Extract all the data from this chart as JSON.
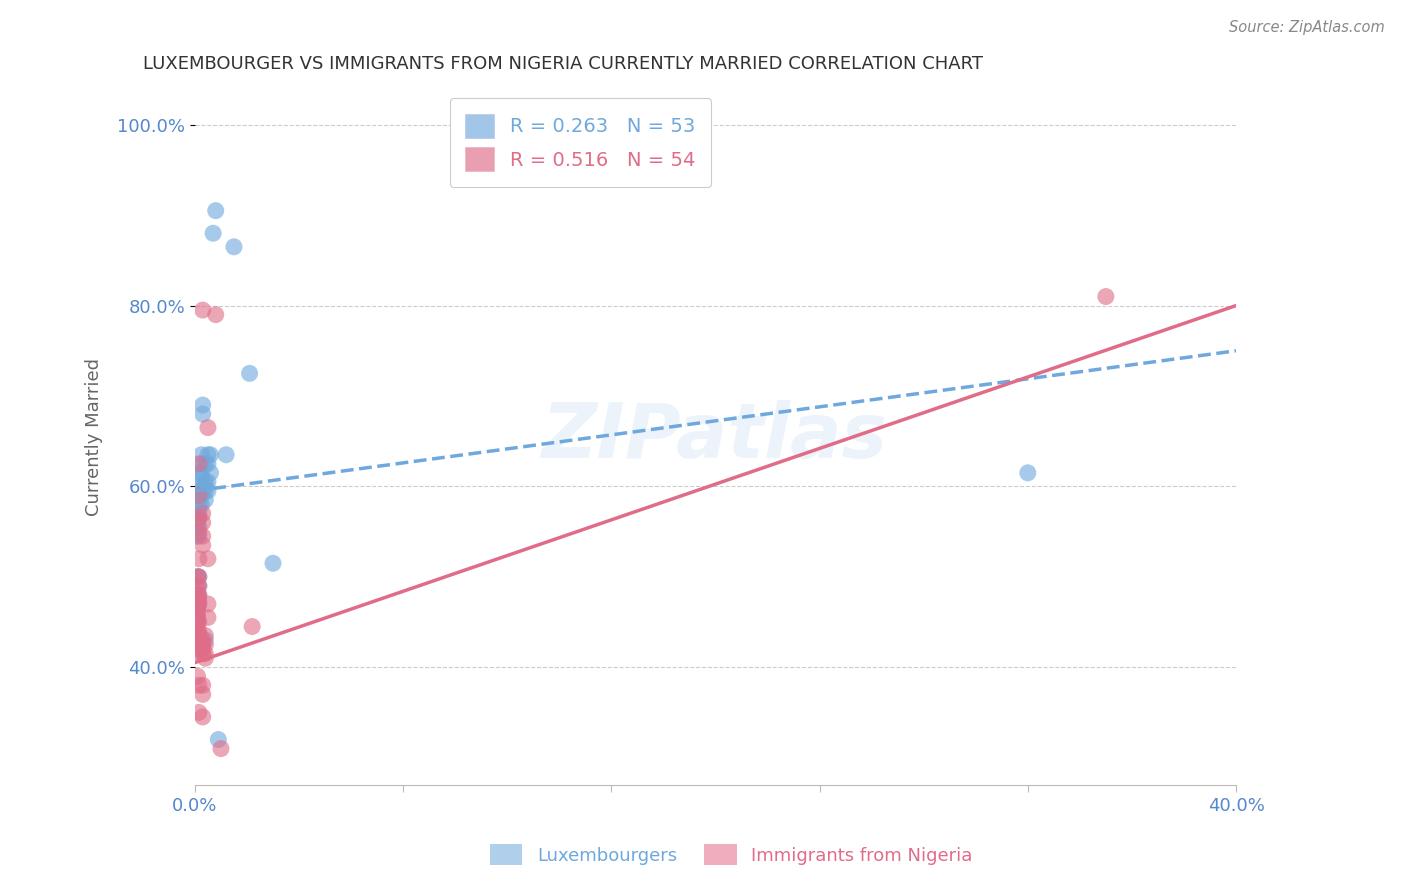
{
  "title": "LUXEMBOURGER VS IMMIGRANTS FROM NIGERIA CURRENTLY MARRIED CORRELATION CHART",
  "source": "Source: ZipAtlas.com",
  "xlabel_luxembourgers": "Luxembourgers",
  "xlabel_nigeria": "Immigrants from Nigeria",
  "ylabel": "Currently Married",
  "xlim": [
    0.0,
    0.4
  ],
  "ylim": [
    0.27,
    1.04
  ],
  "xticks": [
    0.0,
    0.08,
    0.16,
    0.24,
    0.32,
    0.4
  ],
  "xtick_labels": [
    "0.0%",
    "",
    "",
    "",
    "",
    "40.0%"
  ],
  "yticks": [
    0.4,
    0.6,
    0.8,
    1.0
  ],
  "ytick_labels": [
    "40.0%",
    "60.0%",
    "80.0%",
    "100.0%"
  ],
  "blue_color": "#6fa8dc",
  "pink_color": "#e06c88",
  "blue_R": 0.263,
  "blue_N": 53,
  "pink_R": 0.516,
  "pink_N": 54,
  "blue_scatter": [
    [
      0.001,
      0.585
    ],
    [
      0.001,
      0.56
    ],
    [
      0.001,
      0.545
    ],
    [
      0.001,
      0.5
    ],
    [
      0.001,
      0.48
    ],
    [
      0.001,
      0.475
    ],
    [
      0.001,
      0.47
    ],
    [
      0.001,
      0.465
    ],
    [
      0.001,
      0.455
    ],
    [
      0.001,
      0.45
    ],
    [
      0.0015,
      0.615
    ],
    [
      0.0015,
      0.595
    ],
    [
      0.0015,
      0.59
    ],
    [
      0.0015,
      0.58
    ],
    [
      0.0015,
      0.575
    ],
    [
      0.0015,
      0.57
    ],
    [
      0.0015,
      0.565
    ],
    [
      0.0015,
      0.555
    ],
    [
      0.0015,
      0.545
    ],
    [
      0.0015,
      0.5
    ],
    [
      0.0015,
      0.49
    ],
    [
      0.0015,
      0.48
    ],
    [
      0.0015,
      0.47
    ],
    [
      0.003,
      0.69
    ],
    [
      0.003,
      0.68
    ],
    [
      0.0025,
      0.635
    ],
    [
      0.0025,
      0.625
    ],
    [
      0.0025,
      0.615
    ],
    [
      0.0025,
      0.61
    ],
    [
      0.0025,
      0.6
    ],
    [
      0.0025,
      0.595
    ],
    [
      0.0025,
      0.59
    ],
    [
      0.0025,
      0.58
    ],
    [
      0.004,
      0.625
    ],
    [
      0.004,
      0.605
    ],
    [
      0.004,
      0.6
    ],
    [
      0.004,
      0.595
    ],
    [
      0.004,
      0.585
    ],
    [
      0.004,
      0.43
    ],
    [
      0.005,
      0.635
    ],
    [
      0.005,
      0.625
    ],
    [
      0.005,
      0.605
    ],
    [
      0.005,
      0.595
    ],
    [
      0.006,
      0.635
    ],
    [
      0.006,
      0.615
    ],
    [
      0.008,
      0.905
    ],
    [
      0.007,
      0.88
    ],
    [
      0.009,
      0.32
    ],
    [
      0.012,
      0.635
    ],
    [
      0.015,
      0.865
    ],
    [
      0.021,
      0.725
    ],
    [
      0.03,
      0.515
    ],
    [
      0.32,
      0.615
    ]
  ],
  "pink_scatter": [
    [
      0.001,
      0.5
    ],
    [
      0.001,
      0.49
    ],
    [
      0.001,
      0.48
    ],
    [
      0.001,
      0.47
    ],
    [
      0.001,
      0.465
    ],
    [
      0.001,
      0.46
    ],
    [
      0.001,
      0.455
    ],
    [
      0.001,
      0.45
    ],
    [
      0.001,
      0.44
    ],
    [
      0.001,
      0.435
    ],
    [
      0.001,
      0.43
    ],
    [
      0.001,
      0.415
    ],
    [
      0.001,
      0.39
    ],
    [
      0.0015,
      0.625
    ],
    [
      0.0015,
      0.59
    ],
    [
      0.0015,
      0.565
    ],
    [
      0.0015,
      0.55
    ],
    [
      0.0015,
      0.52
    ],
    [
      0.0015,
      0.5
    ],
    [
      0.0015,
      0.49
    ],
    [
      0.0015,
      0.48
    ],
    [
      0.0015,
      0.475
    ],
    [
      0.0015,
      0.47
    ],
    [
      0.0015,
      0.45
    ],
    [
      0.0015,
      0.44
    ],
    [
      0.0015,
      0.435
    ],
    [
      0.0015,
      0.43
    ],
    [
      0.0015,
      0.42
    ],
    [
      0.0015,
      0.38
    ],
    [
      0.0015,
      0.35
    ],
    [
      0.003,
      0.795
    ],
    [
      0.003,
      0.57
    ],
    [
      0.003,
      0.56
    ],
    [
      0.003,
      0.545
    ],
    [
      0.003,
      0.535
    ],
    [
      0.003,
      0.43
    ],
    [
      0.003,
      0.425
    ],
    [
      0.003,
      0.42
    ],
    [
      0.003,
      0.415
    ],
    [
      0.003,
      0.38
    ],
    [
      0.003,
      0.37
    ],
    [
      0.003,
      0.345
    ],
    [
      0.004,
      0.435
    ],
    [
      0.004,
      0.425
    ],
    [
      0.004,
      0.415
    ],
    [
      0.004,
      0.41
    ],
    [
      0.005,
      0.665
    ],
    [
      0.005,
      0.52
    ],
    [
      0.005,
      0.47
    ],
    [
      0.005,
      0.455
    ],
    [
      0.008,
      0.79
    ],
    [
      0.01,
      0.31
    ],
    [
      0.022,
      0.445
    ],
    [
      0.35,
      0.81
    ]
  ],
  "blue_line_x": [
    0.0,
    0.4
  ],
  "blue_line_y": [
    0.595,
    0.75
  ],
  "pink_line_x": [
    0.0,
    0.4
  ],
  "pink_line_y": [
    0.405,
    0.8
  ],
  "watermark": "ZIPatlas",
  "grid_color": "#cccccc",
  "background_color": "#ffffff",
  "title_color": "#333333",
  "axis_color": "#5588cc",
  "legend_blue_text": "R = 0.263   N = 53",
  "legend_pink_text": "R = 0.516   N = 54"
}
